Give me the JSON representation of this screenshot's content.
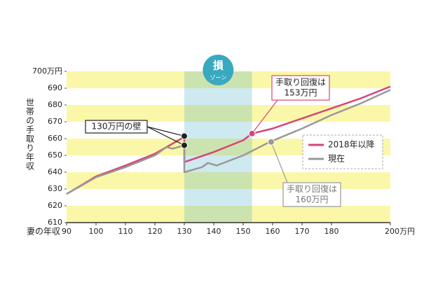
{
  "chart_data": {
    "type": "line",
    "y_label": "世帯の手取り年収",
    "x_label": "妻の年収",
    "xlim": [
      90,
      200
    ],
    "ylim": [
      610,
      700
    ],
    "xticks": [
      90,
      100,
      110,
      120,
      130,
      140,
      150,
      160,
      170,
      180,
      {
        "value": 200,
        "label": "200万円"
      }
    ],
    "yticks": [
      610,
      620,
      630,
      640,
      650,
      660,
      670,
      680,
      690,
      {
        "value": 700,
        "label": "700万円"
      }
    ],
    "stripes": true,
    "stripe_color": "#fbf7a8",
    "legend": "right",
    "zone": {
      "from": 130,
      "to": 153,
      "label_main": "損",
      "label_sub": "ゾーン",
      "color": "#3aa9bf"
    },
    "series": [
      {
        "name": "2018年以降",
        "color": "#d6457a",
        "x": [
          90,
          100,
          110,
          120,
          130,
          130,
          140,
          150,
          153,
          160,
          170,
          180,
          190,
          200
        ],
        "values": [
          627,
          637.5,
          644,
          651,
          661,
          646,
          652,
          659,
          663,
          666,
          672,
          678,
          684,
          691
        ]
      },
      {
        "name": "現在",
        "color": "#999999",
        "x": [
          90,
          100,
          110,
          120,
          124,
          126,
          130,
          130,
          136,
          138,
          141,
          150,
          159,
          170,
          180,
          190,
          200
        ],
        "values": [
          627,
          637,
          643,
          650,
          655,
          654,
          656,
          640,
          643,
          645.5,
          644,
          650,
          658,
          666,
          674,
          681,
          689
        ]
      }
    ],
    "annotations": [
      {
        "text": [
          "130万円の壁"
        ],
        "color": "#222222",
        "points": [
          {
            "x": 130,
            "y": 661.5
          },
          {
            "x": 130,
            "y": 656
          }
        ]
      },
      {
        "text": [
          "手取り回復は",
          "153万円"
        ],
        "color": "#d6457a",
        "points": [
          {
            "x": 153,
            "y": 663
          }
        ]
      },
      {
        "text": [
          "手取り回復は",
          "160万円"
        ],
        "color": "#999999",
        "points": [
          {
            "x": 159.5,
            "y": 658
          }
        ]
      }
    ]
  }
}
